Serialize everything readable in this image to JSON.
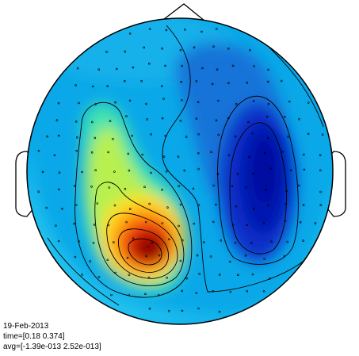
{
  "info": {
    "date": "19-Feb-2013",
    "time": "time=[0.18 0.374]",
    "avg": "avg=[-1.39e-013 2.52e-013]"
  },
  "colormap": "jet",
  "colors": {
    "head_outline": "#000000",
    "contour": "#000000",
    "sensor": "#000000"
  }
}
